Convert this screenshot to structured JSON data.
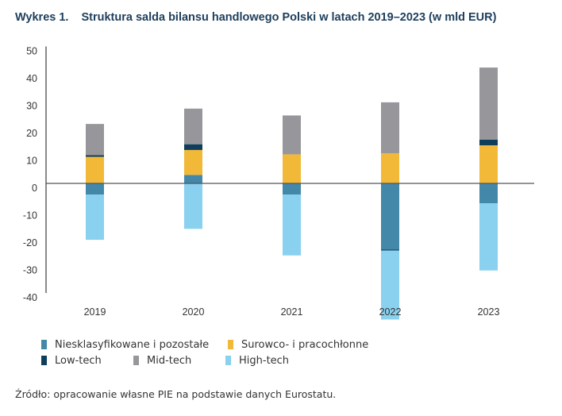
{
  "figure": {
    "number_label": "Wykres 1.",
    "title": "Struktura salda bilansu handlowego Polski w latach 2019–2023 (w mld EUR)",
    "source": "Źródło: opracowanie własne PIE na podstawie danych Eurostatu."
  },
  "chart_data": {
    "type": "bar",
    "stacked": true,
    "title": "Struktura salda bilansu handlowego Polski w latach 2019–2023 (w mld EUR)",
    "xlabel": "",
    "ylabel": "",
    "categories": [
      "2019",
      "2020",
      "2021",
      "2022",
      "2023"
    ],
    "ylim": [
      -40,
      50
    ],
    "yticks": [
      50,
      40,
      30,
      20,
      10,
      0,
      -10,
      -20,
      -30,
      -40
    ],
    "grid": false,
    "legend_position": "bottom-left",
    "series": [
      {
        "name": "Niesklasyfikowane i pozostałe",
        "color": "#4388a9",
        "values": [
          -4.1,
          3.1,
          -4.1,
          -24.2,
          -7.3
        ]
      },
      {
        "name": "Surowco- i pracochłonne",
        "color": "#f2b938",
        "values": [
          9.7,
          9.1,
          10.6,
          11.0,
          13.9
        ]
      },
      {
        "name": "Low-tech",
        "color": "#0f3d5c",
        "values": [
          0.6,
          2.1,
          0.0,
          -0.3,
          2.1
        ]
      },
      {
        "name": "Mid-tech",
        "color": "#97969b",
        "values": [
          11.4,
          13.0,
          14.2,
          18.6,
          26.3
        ]
      },
      {
        "name": "High-tech",
        "color": "#89d1ef",
        "values": [
          -16.5,
          -16.6,
          -22.2,
          -25.2,
          -24.5
        ]
      }
    ]
  },
  "legend": {
    "rows": [
      [
        0,
        1
      ],
      [
        2,
        3,
        4
      ]
    ]
  }
}
